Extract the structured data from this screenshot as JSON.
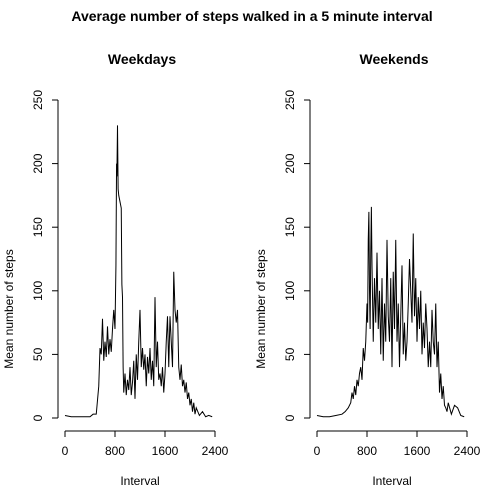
{
  "figure": {
    "title": "Average number of steps walked in a 5 minute interval"
  },
  "chart_data": [
    {
      "type": "line",
      "title": "Weekdays",
      "xlabel": "Interval",
      "ylabel": "Mean number of steps",
      "xlim": [
        0,
        2400
      ],
      "ylim": [
        0,
        250
      ],
      "xticks": [
        0,
        800,
        1600,
        2400
      ],
      "yticks": [
        0,
        50,
        100,
        150,
        200,
        250
      ],
      "grid": false,
      "series": [
        {
          "values": [
            [
              0,
              2
            ],
            [
              100,
              1
            ],
            [
              200,
              1
            ],
            [
              300,
              1
            ],
            [
              400,
              1
            ],
            [
              450,
              3
            ],
            [
              500,
              3
            ],
            [
              540,
              25
            ],
            [
              560,
              55
            ],
            [
              580,
              50
            ],
            [
              600,
              78
            ],
            [
              620,
              45
            ],
            [
              640,
              60
            ],
            [
              660,
              48
            ],
            [
              680,
              72
            ],
            [
              700,
              50
            ],
            [
              720,
              62
            ],
            [
              740,
              52
            ],
            [
              760,
              70
            ],
            [
              780,
              85
            ],
            [
              800,
              70
            ],
            [
              815,
              120
            ],
            [
              825,
              200
            ],
            [
              830,
              190
            ],
            [
              840,
              230
            ],
            [
              850,
              180
            ],
            [
              860,
              175
            ],
            [
              880,
              170
            ],
            [
              900,
              165
            ],
            [
              910,
              105
            ],
            [
              920,
              95
            ],
            [
              930,
              40
            ],
            [
              940,
              20
            ],
            [
              960,
              35
            ],
            [
              980,
              18
            ],
            [
              1000,
              30
            ],
            [
              1020,
              22
            ],
            [
              1040,
              40
            ],
            [
              1060,
              18
            ],
            [
              1080,
              28
            ],
            [
              1100,
              45
            ],
            [
              1120,
              15
            ],
            [
              1140,
              50
            ],
            [
              1160,
              30
            ],
            [
              1180,
              60
            ],
            [
              1200,
              85
            ],
            [
              1220,
              40
            ],
            [
              1240,
              55
            ],
            [
              1260,
              38
            ],
            [
              1280,
              50
            ],
            [
              1300,
              25
            ],
            [
              1320,
              48
            ],
            [
              1340,
              35
            ],
            [
              1360,
              55
            ],
            [
              1380,
              30
            ],
            [
              1400,
              45
            ],
            [
              1420,
              25
            ],
            [
              1440,
              95
            ],
            [
              1460,
              40
            ],
            [
              1480,
              60
            ],
            [
              1500,
              30
            ],
            [
              1520,
              35
            ],
            [
              1540,
              25
            ],
            [
              1560,
              40
            ],
            [
              1580,
              20
            ],
            [
              1600,
              35
            ],
            [
              1620,
              60
            ],
            [
              1640,
              80
            ],
            [
              1660,
              40
            ],
            [
              1680,
              80
            ],
            [
              1700,
              60
            ],
            [
              1720,
              40
            ],
            [
              1740,
              115
            ],
            [
              1760,
              85
            ],
            [
              1780,
              75
            ],
            [
              1800,
              85
            ],
            [
              1820,
              40
            ],
            [
              1840,
              30
            ],
            [
              1860,
              42
            ],
            [
              1880,
              25
            ],
            [
              1900,
              30
            ],
            [
              1920,
              20
            ],
            [
              1940,
              28
            ],
            [
              1960,
              15
            ],
            [
              1980,
              20
            ],
            [
              2000,
              10
            ],
            [
              2020,
              15
            ],
            [
              2040,
              5
            ],
            [
              2060,
              12
            ],
            [
              2080,
              3
            ],
            [
              2100,
              8
            ],
            [
              2150,
              2
            ],
            [
              2200,
              5
            ],
            [
              2250,
              1
            ],
            [
              2300,
              2
            ],
            [
              2355,
              1
            ]
          ]
        }
      ]
    },
    {
      "type": "line",
      "title": "Weekends",
      "xlabel": "Interval",
      "ylabel": "Mean number of steps",
      "xlim": [
        0,
        2400
      ],
      "ylim": [
        0,
        250
      ],
      "xticks": [
        0,
        800,
        1600,
        2400
      ],
      "yticks": [
        0,
        50,
        100,
        150,
        200,
        250
      ],
      "grid": false,
      "series": [
        {
          "values": [
            [
              0,
              2
            ],
            [
              100,
              1
            ],
            [
              200,
              1
            ],
            [
              300,
              2
            ],
            [
              400,
              3
            ],
            [
              450,
              5
            ],
            [
              500,
              8
            ],
            [
              540,
              12
            ],
            [
              560,
              20
            ],
            [
              580,
              15
            ],
            [
              600,
              25
            ],
            [
              620,
              18
            ],
            [
              640,
              30
            ],
            [
              660,
              25
            ],
            [
              680,
              35
            ],
            [
              700,
              40
            ],
            [
              720,
              30
            ],
            [
              740,
              55
            ],
            [
              760,
              45
            ],
            [
              780,
              60
            ],
            [
              800,
              90
            ],
            [
              810,
              75
            ],
            [
              820,
              140
            ],
            [
              830,
              162
            ],
            [
              840,
              100
            ],
            [
              850,
              70
            ],
            [
              860,
              130
            ],
            [
              870,
              166
            ],
            [
              880,
              120
            ],
            [
              900,
              60
            ],
            [
              920,
              110
            ],
            [
              940,
              75
            ],
            [
              960,
              130
            ],
            [
              980,
              70
            ],
            [
              1000,
              100
            ],
            [
              1020,
              50
            ],
            [
              1040,
              110
            ],
            [
              1060,
              45
            ],
            [
              1080,
              90
            ],
            [
              1100,
              60
            ],
            [
              1120,
              140
            ],
            [
              1140,
              80
            ],
            [
              1160,
              60
            ],
            [
              1180,
              110
            ],
            [
              1200,
              40
            ],
            [
              1220,
              115
            ],
            [
              1240,
              70
            ],
            [
              1260,
              140
            ],
            [
              1280,
              60
            ],
            [
              1300,
              90
            ],
            [
              1320,
              40
            ],
            [
              1340,
              80
            ],
            [
              1360,
              120
            ],
            [
              1380,
              50
            ],
            [
              1400,
              75
            ],
            [
              1420,
              45
            ],
            [
              1440,
              60
            ],
            [
              1460,
              90
            ],
            [
              1480,
              125
            ],
            [
              1500,
              100
            ],
            [
              1520,
              75
            ],
            [
              1540,
              145
            ],
            [
              1560,
              80
            ],
            [
              1580,
              110
            ],
            [
              1600,
              60
            ],
            [
              1620,
              95
            ],
            [
              1640,
              70
            ],
            [
              1660,
              100
            ],
            [
              1680,
              50
            ],
            [
              1700,
              75
            ],
            [
              1720,
              55
            ],
            [
              1740,
              90
            ],
            [
              1760,
              70
            ],
            [
              1780,
              40
            ],
            [
              1800,
              60
            ],
            [
              1820,
              40
            ],
            [
              1840,
              85
            ],
            [
              1860,
              60
            ],
            [
              1880,
              50
            ],
            [
              1900,
              90
            ],
            [
              1920,
              40
            ],
            [
              1940,
              60
            ],
            [
              1960,
              20
            ],
            [
              1980,
              35
            ],
            [
              2000,
              15
            ],
            [
              2020,
              25
            ],
            [
              2040,
              10
            ],
            [
              2060,
              8
            ],
            [
              2080,
              5
            ],
            [
              2100,
              12
            ],
            [
              2150,
              3
            ],
            [
              2200,
              10
            ],
            [
              2250,
              8
            ],
            [
              2300,
              2
            ],
            [
              2355,
              1
            ]
          ]
        }
      ]
    }
  ]
}
